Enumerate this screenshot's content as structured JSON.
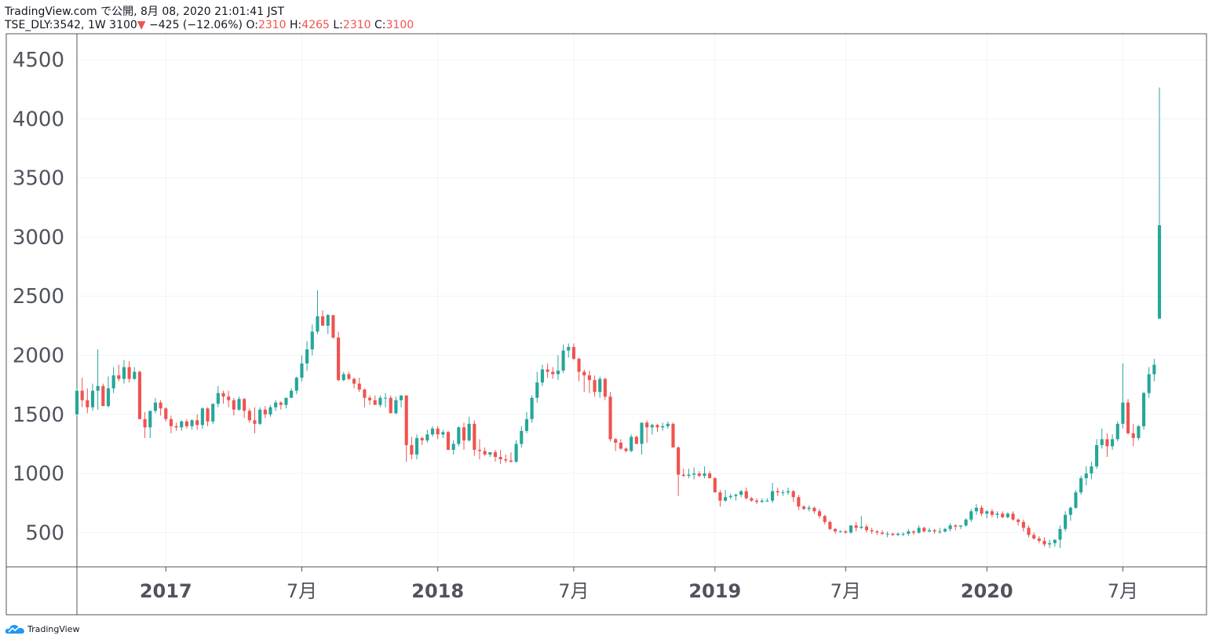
{
  "header": {
    "line1": "TradingView.com で公開, 8月 08, 2020 21:01:41 JST",
    "symbol": "TSE_DLY:3542, 1W",
    "last": "3100",
    "arrow": "▼",
    "change": "−425 (−12.06%)",
    "o_label": "O:",
    "o_value": "2310",
    "h_label": "H:",
    "h_value": "4265",
    "l_label": "L:",
    "l_value": "2310",
    "c_label": "C:",
    "c_value": "3100"
  },
  "colors": {
    "up": "#26a69a",
    "down": "#ef5350",
    "grid": "#f0f3fa",
    "axis": "#555555",
    "text": "#50535e"
  },
  "footer": {
    "brand": "TradingView",
    "logo_icon": "tradingview-cloud-icon"
  },
  "chart_data": {
    "type": "candlestick",
    "interval": "1W",
    "y_ticks": [
      500,
      1000,
      1500,
      2000,
      2500,
      3000,
      3500,
      4000,
      4500
    ],
    "x_ticks": [
      {
        "label": "2017",
        "date": "2017-01-02",
        "bold": true
      },
      {
        "label": "7月",
        "date": "2017-07-03",
        "bold": false
      },
      {
        "label": "2018",
        "date": "2018-01-01",
        "bold": true
      },
      {
        "label": "7月",
        "date": "2018-07-02",
        "bold": false
      },
      {
        "label": "2019",
        "date": "2019-01-07",
        "bold": true
      },
      {
        "label": "7月",
        "date": "2019-07-01",
        "bold": false
      },
      {
        "label": "2020",
        "date": "2020-01-06",
        "bold": true
      },
      {
        "label": "7月",
        "date": "2020-07-06",
        "bold": false
      }
    ],
    "x_range": [
      "2016-09-05",
      "2020-10-26"
    ],
    "y_range": [
      210,
      4720
    ],
    "grid": true,
    "candles_ohlc": [
      [
        1500,
        1720,
        1480,
        1700
      ],
      [
        1700,
        1810,
        1560,
        1620
      ],
      [
        1620,
        1720,
        1510,
        1560
      ],
      [
        1560,
        1760,
        1530,
        1700
      ],
      [
        1700,
        2050,
        1540,
        1740
      ],
      [
        1740,
        1760,
        1600,
        1570
      ],
      [
        1570,
        1820,
        1560,
        1720
      ],
      [
        1720,
        1900,
        1680,
        1830
      ],
      [
        1830,
        1920,
        1780,
        1800
      ],
      [
        1800,
        1960,
        1760,
        1900
      ],
      [
        1900,
        1950,
        1770,
        1800
      ],
      [
        1800,
        1900,
        1790,
        1860
      ],
      [
        1860,
        1870,
        1460,
        1460
      ],
      [
        1460,
        1520,
        1300,
        1390
      ],
      [
        1390,
        1530,
        1300,
        1530
      ],
      [
        1530,
        1640,
        1510,
        1600
      ],
      [
        1600,
        1620,
        1490,
        1550
      ],
      [
        1550,
        1560,
        1440,
        1460
      ],
      [
        1460,
        1490,
        1340,
        1400
      ],
      [
        1400,
        1430,
        1360,
        1390
      ],
      [
        1390,
        1450,
        1360,
        1440
      ],
      [
        1440,
        1460,
        1380,
        1400
      ],
      [
        1400,
        1460,
        1370,
        1450
      ],
      [
        1450,
        1500,
        1370,
        1410
      ],
      [
        1410,
        1560,
        1380,
        1550
      ],
      [
        1550,
        1560,
        1400,
        1440
      ],
      [
        1440,
        1580,
        1420,
        1590
      ],
      [
        1590,
        1740,
        1560,
        1680
      ],
      [
        1680,
        1700,
        1590,
        1650
      ],
      [
        1650,
        1700,
        1560,
        1620
      ],
      [
        1620,
        1640,
        1490,
        1540
      ],
      [
        1540,
        1650,
        1530,
        1630
      ],
      [
        1630,
        1640,
        1470,
        1530
      ],
      [
        1530,
        1550,
        1430,
        1450
      ],
      [
        1450,
        1560,
        1340,
        1420
      ],
      [
        1420,
        1560,
        1410,
        1540
      ],
      [
        1540,
        1570,
        1470,
        1500
      ],
      [
        1500,
        1580,
        1480,
        1560
      ],
      [
        1560,
        1620,
        1530,
        1600
      ],
      [
        1600,
        1610,
        1540,
        1580
      ],
      [
        1580,
        1640,
        1550,
        1640
      ],
      [
        1640,
        1720,
        1640,
        1700
      ],
      [
        1700,
        1820,
        1670,
        1810
      ],
      [
        1810,
        2000,
        1780,
        1930
      ],
      [
        1930,
        2120,
        1870,
        2050
      ],
      [
        2050,
        2260,
        2000,
        2200
      ],
      [
        2200,
        2550,
        2180,
        2330
      ],
      [
        2330,
        2380,
        2260,
        2250
      ],
      [
        2250,
        2350,
        2180,
        2340
      ],
      [
        2340,
        2340,
        2140,
        2150
      ],
      [
        2150,
        2200,
        1780,
        1790
      ],
      [
        1790,
        1860,
        1780,
        1840
      ],
      [
        1840,
        1860,
        1790,
        1800
      ],
      [
        1800,
        1810,
        1720,
        1760
      ],
      [
        1760,
        1810,
        1690,
        1710
      ],
      [
        1710,
        1720,
        1560,
        1640
      ],
      [
        1640,
        1660,
        1580,
        1620
      ],
      [
        1620,
        1660,
        1600,
        1580
      ],
      [
        1580,
        1660,
        1560,
        1640
      ],
      [
        1640,
        1680,
        1560,
        1640
      ],
      [
        1640,
        1660,
        1510,
        1510
      ],
      [
        1510,
        1650,
        1500,
        1620
      ],
      [
        1620,
        1660,
        1560,
        1660
      ],
      [
        1660,
        1660,
        1100,
        1240
      ],
      [
        1240,
        1310,
        1120,
        1160
      ],
      [
        1160,
        1330,
        1120,
        1300
      ],
      [
        1300,
        1310,
        1240,
        1280
      ],
      [
        1280,
        1370,
        1260,
        1330
      ],
      [
        1330,
        1400,
        1310,
        1380
      ],
      [
        1380,
        1400,
        1290,
        1330
      ],
      [
        1330,
        1370,
        1300,
        1350
      ],
      [
        1350,
        1360,
        1200,
        1200
      ],
      [
        1200,
        1280,
        1160,
        1250
      ],
      [
        1250,
        1400,
        1230,
        1390
      ],
      [
        1390,
        1430,
        1200,
        1280
      ],
      [
        1280,
        1480,
        1270,
        1420
      ],
      [
        1420,
        1450,
        1150,
        1200
      ],
      [
        1200,
        1290,
        1120,
        1190
      ],
      [
        1190,
        1220,
        1150,
        1160
      ],
      [
        1160,
        1170,
        1140,
        1180
      ],
      [
        1180,
        1200,
        1100,
        1140
      ],
      [
        1140,
        1200,
        1080,
        1120
      ],
      [
        1120,
        1160,
        1090,
        1110
      ],
      [
        1110,
        1180,
        1090,
        1100
      ],
      [
        1100,
        1280,
        1090,
        1250
      ],
      [
        1250,
        1400,
        1220,
        1360
      ],
      [
        1360,
        1520,
        1340,
        1460
      ],
      [
        1460,
        1660,
        1430,
        1640
      ],
      [
        1640,
        1860,
        1600,
        1770
      ],
      [
        1770,
        1920,
        1740,
        1880
      ],
      [
        1880,
        1930,
        1810,
        1860
      ],
      [
        1860,
        1900,
        1800,
        1840
      ],
      [
        1840,
        2000,
        1790,
        1870
      ],
      [
        1870,
        2090,
        1850,
        2040
      ],
      [
        2040,
        2100,
        1980,
        2070
      ],
      [
        2070,
        2100,
        1960,
        1970
      ],
      [
        1970,
        1980,
        1780,
        1860
      ],
      [
        1860,
        1880,
        1690,
        1830
      ],
      [
        1830,
        1870,
        1680,
        1790
      ],
      [
        1790,
        1830,
        1650,
        1690
      ],
      [
        1690,
        1820,
        1640,
        1800
      ],
      [
        1800,
        1810,
        1620,
        1650
      ],
      [
        1650,
        1690,
        1270,
        1290
      ],
      [
        1290,
        1300,
        1190,
        1260
      ],
      [
        1260,
        1290,
        1200,
        1210
      ],
      [
        1210,
        1220,
        1180,
        1190
      ],
      [
        1190,
        1330,
        1180,
        1310
      ],
      [
        1310,
        1320,
        1250,
        1250
      ],
      [
        1250,
        1420,
        1160,
        1430
      ],
      [
        1430,
        1450,
        1260,
        1390
      ],
      [
        1390,
        1420,
        1330,
        1410
      ],
      [
        1410,
        1420,
        1350,
        1390
      ],
      [
        1390,
        1430,
        1360,
        1400
      ],
      [
        1400,
        1440,
        1380,
        1420
      ],
      [
        1420,
        1430,
        1280,
        1220
      ],
      [
        1220,
        1230,
        810,
        990
      ],
      [
        990,
        1040,
        970,
        980
      ],
      [
        980,
        1040,
        960,
        990
      ],
      [
        990,
        1050,
        950,
        1000
      ],
      [
        1000,
        1020,
        970,
        980
      ],
      [
        980,
        1060,
        960,
        1000
      ],
      [
        1000,
        1020,
        960,
        960
      ],
      [
        960,
        970,
        840,
        840
      ],
      [
        840,
        860,
        720,
        770
      ],
      [
        770,
        860,
        760,
        800
      ],
      [
        800,
        830,
        780,
        810
      ],
      [
        810,
        830,
        770,
        820
      ],
      [
        820,
        860,
        800,
        850
      ],
      [
        850,
        880,
        780,
        790
      ],
      [
        790,
        800,
        760,
        770
      ],
      [
        770,
        790,
        740,
        760
      ],
      [
        760,
        790,
        750,
        770
      ],
      [
        770,
        790,
        760,
        770
      ],
      [
        770,
        920,
        750,
        850
      ],
      [
        850,
        880,
        810,
        840
      ],
      [
        840,
        860,
        810,
        840
      ],
      [
        840,
        880,
        820,
        850
      ],
      [
        850,
        860,
        760,
        800
      ],
      [
        800,
        820,
        690,
        720
      ],
      [
        720,
        730,
        690,
        700
      ],
      [
        700,
        730,
        680,
        710
      ],
      [
        710,
        720,
        660,
        680
      ],
      [
        680,
        700,
        620,
        640
      ],
      [
        640,
        650,
        570,
        590
      ],
      [
        590,
        600,
        520,
        530
      ],
      [
        530,
        540,
        490,
        510
      ],
      [
        510,
        520,
        500,
        510
      ],
      [
        510,
        520,
        490,
        500
      ],
      [
        500,
        560,
        490,
        560
      ],
      [
        560,
        590,
        510,
        540
      ],
      [
        540,
        640,
        530,
        550
      ],
      [
        550,
        570,
        500,
        520
      ],
      [
        520,
        540,
        490,
        510
      ],
      [
        510,
        520,
        480,
        500
      ],
      [
        500,
        520,
        480,
        490
      ],
      [
        490,
        510,
        460,
        490
      ],
      [
        490,
        500,
        470,
        480
      ],
      [
        480,
        500,
        470,
        490
      ],
      [
        490,
        500,
        470,
        490
      ],
      [
        490,
        530,
        470,
        510
      ],
      [
        510,
        520,
        480,
        500
      ],
      [
        500,
        560,
        490,
        540
      ],
      [
        540,
        550,
        500,
        510
      ],
      [
        510,
        540,
        500,
        520
      ],
      [
        520,
        530,
        490,
        510
      ],
      [
        510,
        540,
        490,
        510
      ],
      [
        510,
        540,
        500,
        530
      ],
      [
        530,
        580,
        510,
        560
      ],
      [
        560,
        570,
        520,
        550
      ],
      [
        550,
        560,
        530,
        560
      ],
      [
        560,
        620,
        550,
        610
      ],
      [
        610,
        700,
        590,
        680
      ],
      [
        680,
        740,
        650,
        710
      ],
      [
        710,
        730,
        640,
        660
      ],
      [
        660,
        690,
        620,
        680
      ],
      [
        680,
        700,
        630,
        650
      ],
      [
        650,
        680,
        620,
        660
      ],
      [
        660,
        680,
        620,
        630
      ],
      [
        630,
        670,
        620,
        660
      ],
      [
        660,
        680,
        600,
        610
      ],
      [
        610,
        620,
        560,
        590
      ],
      [
        590,
        610,
        510,
        540
      ],
      [
        540,
        560,
        460,
        480
      ],
      [
        480,
        500,
        440,
        450
      ],
      [
        450,
        470,
        410,
        430
      ],
      [
        430,
        460,
        380,
        400
      ],
      [
        400,
        440,
        370,
        410
      ],
      [
        410,
        420,
        380,
        440
      ],
      [
        440,
        560,
        370,
        530
      ],
      [
        530,
        680,
        510,
        650
      ],
      [
        650,
        720,
        600,
        710
      ],
      [
        710,
        860,
        700,
        840
      ],
      [
        840,
        980,
        820,
        960
      ],
      [
        960,
        1060,
        900,
        1000
      ],
      [
        1000,
        1100,
        950,
        1060
      ],
      [
        1060,
        1290,
        1040,
        1240
      ],
      [
        1240,
        1380,
        1210,
        1290
      ],
      [
        1290,
        1340,
        1140,
        1230
      ],
      [
        1230,
        1330,
        1200,
        1290
      ],
      [
        1290,
        1440,
        1270,
        1420
      ],
      [
        1420,
        1930,
        1380,
        1600
      ],
      [
        1600,
        1630,
        1330,
        1340
      ],
      [
        1340,
        1420,
        1230,
        1300
      ],
      [
        1300,
        1410,
        1280,
        1400
      ],
      [
        1400,
        1690,
        1370,
        1680
      ],
      [
        1680,
        1900,
        1640,
        1840
      ],
      [
        1840,
        1970,
        1780,
        1920
      ],
      [
        2310,
        4265,
        2310,
        3100
      ]
    ]
  }
}
